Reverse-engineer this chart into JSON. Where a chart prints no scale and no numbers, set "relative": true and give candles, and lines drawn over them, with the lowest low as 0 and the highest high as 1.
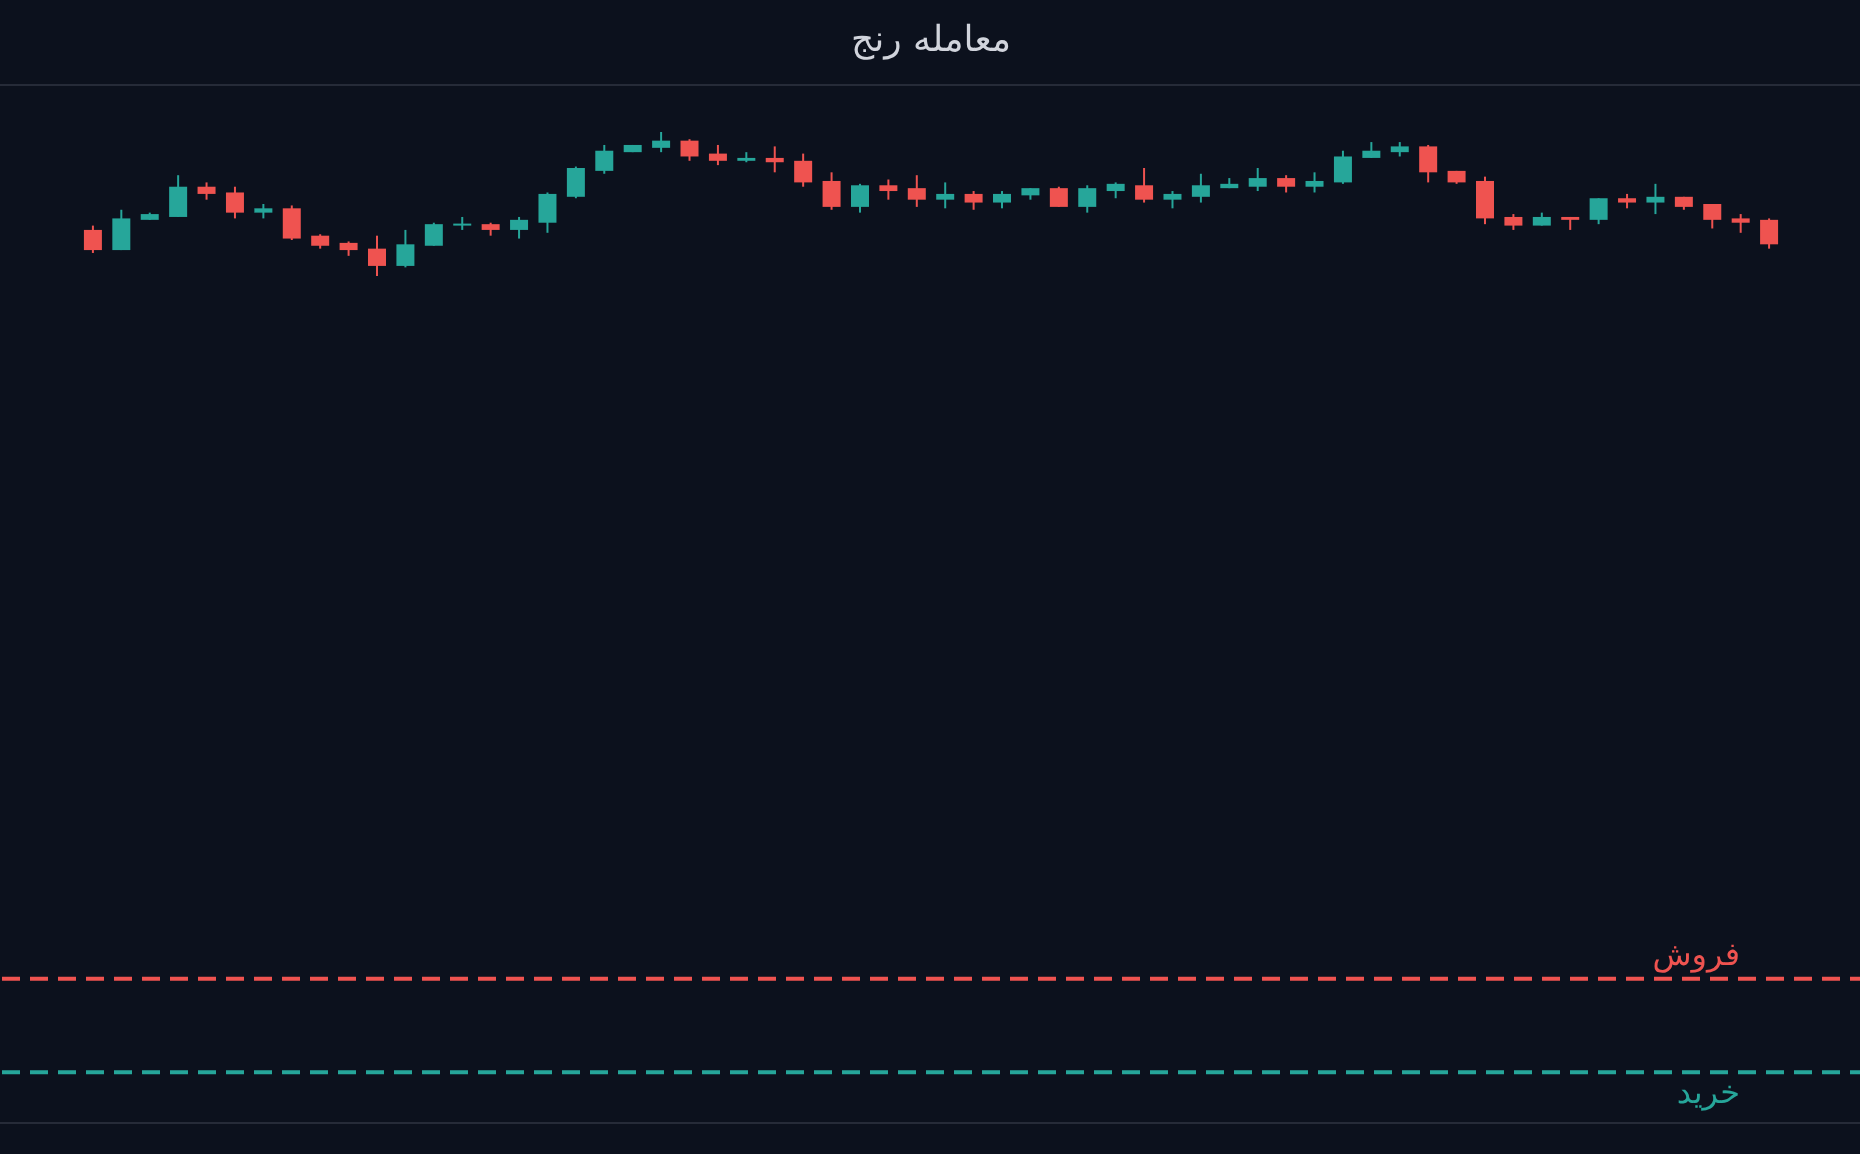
{
  "chart_data": {
    "type": "candlestick",
    "title": "معامله رنج",
    "relative": true,
    "categories": [
      null,
      null,
      null,
      null,
      null,
      null,
      null,
      null,
      null,
      null,
      null,
      null,
      null,
      null,
      null,
      null,
      null,
      null,
      null,
      null,
      null,
      null,
      null,
      null,
      null,
      null,
      null,
      null,
      null,
      null,
      null,
      null,
      null,
      null,
      null,
      null,
      null,
      null,
      null,
      null,
      null,
      null,
      null,
      null,
      null,
      null,
      null,
      null,
      null,
      null,
      null,
      null,
      null,
      null,
      null,
      null,
      null,
      null,
      null,
      null
    ],
    "ohlc": [
      [
        0.32,
        0.35,
        0.16,
        0.18
      ],
      [
        0.18,
        0.46,
        0.18,
        0.4
      ],
      [
        0.39,
        0.44,
        0.39,
        0.43
      ],
      [
        0.41,
        0.7,
        0.41,
        0.62
      ],
      [
        0.62,
        0.65,
        0.53,
        0.57
      ],
      [
        0.58,
        0.62,
        0.4,
        0.44
      ],
      [
        0.44,
        0.5,
        0.4,
        0.47
      ],
      [
        0.47,
        0.49,
        0.25,
        0.26
      ],
      [
        0.28,
        0.29,
        0.19,
        0.21
      ],
      [
        0.23,
        0.24,
        0.14,
        0.18
      ],
      [
        0.19,
        0.28,
        0,
        0.07
      ],
      [
        0.07,
        0.32,
        0.06,
        0.22
      ],
      [
        0.21,
        0.37,
        0.21,
        0.36
      ],
      [
        0.35,
        0.41,
        0.32,
        0.36
      ],
      [
        0.36,
        0.37,
        0.28,
        0.32
      ],
      [
        0.32,
        0.41,
        0.26,
        0.39
      ],
      [
        0.37,
        0.58,
        0.3,
        0.57
      ],
      [
        0.55,
        0.76,
        0.54,
        0.75
      ],
      [
        0.73,
        0.91,
        0.71,
        0.87
      ],
      [
        0.86,
        0.91,
        0.86,
        0.91
      ],
      [
        0.89,
        1,
        0.86,
        0.94
      ],
      [
        0.94,
        0.95,
        0.8,
        0.83
      ],
      [
        0.85,
        0.91,
        0.77,
        0.8
      ],
      [
        0.8,
        0.86,
        0.79,
        0.82
      ],
      [
        0.82,
        0.9,
        0.72,
        0.79
      ],
      [
        0.8,
        0.85,
        0.62,
        0.65
      ],
      [
        0.66,
        0.72,
        0.46,
        0.48
      ],
      [
        0.48,
        0.64,
        0.44,
        0.63
      ],
      [
        0.63,
        0.67,
        0.53,
        0.59
      ],
      [
        0.61,
        0.7,
        0.48,
        0.53
      ],
      [
        0.53,
        0.65,
        0.47,
        0.57
      ],
      [
        0.57,
        0.59,
        0.46,
        0.51
      ],
      [
        0.51,
        0.59,
        0.47,
        0.57
      ],
      [
        0.56,
        0.61,
        0.53,
        0.61
      ],
      [
        0.61,
        0.62,
        0.48,
        0.48
      ],
      [
        0.48,
        0.63,
        0.44,
        0.61
      ],
      [
        0.59,
        0.65,
        0.54,
        0.64
      ],
      [
        0.63,
        0.75,
        0.51,
        0.53
      ],
      [
        0.53,
        0.59,
        0.47,
        0.57
      ],
      [
        0.55,
        0.71,
        0.51,
        0.63
      ],
      [
        0.61,
        0.68,
        0.61,
        0.64
      ],
      [
        0.62,
        0.75,
        0.59,
        0.68
      ],
      [
        0.68,
        0.7,
        0.58,
        0.62
      ],
      [
        0.62,
        0.72,
        0.58,
        0.66
      ],
      [
        0.65,
        0.87,
        0.64,
        0.83
      ],
      [
        0.82,
        0.93,
        0.82,
        0.87
      ],
      [
        0.86,
        0.93,
        0.83,
        0.9
      ],
      [
        0.9,
        0.91,
        0.65,
        0.72
      ],
      [
        0.73,
        0.73,
        0.64,
        0.65
      ],
      [
        0.66,
        0.69,
        0.36,
        0.4
      ],
      [
        0.41,
        0.43,
        0.32,
        0.35
      ],
      [
        0.35,
        0.44,
        0.35,
        0.41
      ],
      [
        0.41,
        0.41,
        0.32,
        0.39
      ],
      [
        0.39,
        0.54,
        0.36,
        0.54
      ],
      [
        0.54,
        0.57,
        0.47,
        0.51
      ],
      [
        0.51,
        0.64,
        0.43,
        0.55
      ],
      [
        0.55,
        0.55,
        0.46,
        0.48
      ],
      [
        0.5,
        0.5,
        0.33,
        0.39
      ],
      [
        0.4,
        0.43,
        0.3,
        0.37
      ],
      [
        0.39,
        0.4,
        0.19,
        0.22
      ]
    ],
    "colors": [
      "#ef5350",
      "#26a69a",
      "#26a69a",
      "#26a69a",
      "#ef5350",
      "#ef5350",
      "#26a69a",
      "#ef5350",
      "#ef5350",
      "#ef5350",
      "#ef5350",
      "#26a69a",
      "#26a69a",
      "#26a69a",
      "#ef5350",
      "#26a69a",
      "#26a69a",
      "#26a69a",
      "#26a69a",
      "#26a69a",
      "#26a69a",
      "#ef5350",
      "#ef5350",
      "#26a69a",
      "#ef5350",
      "#ef5350",
      "#ef5350",
      "#26a69a",
      "#ef5350",
      "#ef5350",
      "#26a69a",
      "#ef5350",
      "#26a69a",
      "#26a69a",
      "#ef5350",
      "#26a69a",
      "#26a69a",
      "#ef5350",
      "#26a69a",
      "#26a69a",
      "#26a69a",
      "#26a69a",
      "#ef5350",
      "#26a69a",
      "#26a69a",
      "#26a69a",
      "#26a69a",
      "#ef5350",
      "#ef5350",
      "#ef5350",
      "#ef5350",
      "#26a69a",
      "#ef5350",
      "#26a69a",
      "#ef5350",
      "#26a69a",
      "#ef5350",
      "#ef5350",
      "#ef5350",
      "#ef5350"
    ],
    "ref_lines": [
      {
        "axis": "y",
        "value": -4.88,
        "label": "فروش",
        "color": "#ef5350",
        "line_style": "dashed"
      },
      {
        "axis": "y",
        "value": -5.53,
        "label": "خرید",
        "color": "#26a69a",
        "line_style": "dashed"
      }
    ]
  }
}
